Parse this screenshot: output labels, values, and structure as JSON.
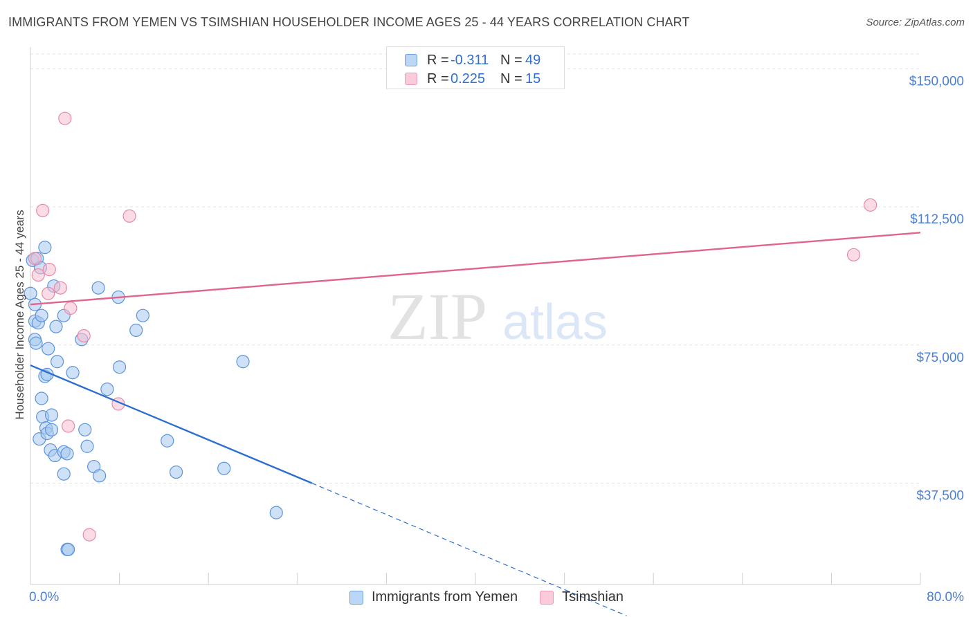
{
  "header": {
    "title": "IMMIGRANTS FROM YEMEN VS TSIMSHIAN HOUSEHOLDER INCOME AGES 25 - 44 YEARS CORRELATION CHART",
    "source": "Source: ZipAtlas.com"
  },
  "watermark": {
    "zip": "ZIP",
    "atlas": "atlas"
  },
  "legend": {
    "series": [
      {
        "r_label": "R =",
        "r_value": "-0.311",
        "n_label": "N =",
        "n_value": "49"
      },
      {
        "r_label": "R =",
        "r_value": "0.225",
        "n_label": "N =",
        "n_value": "15"
      }
    ]
  },
  "colors": {
    "blue_fill": "#a8c8f0",
    "blue_stroke": "#5b93dd",
    "blue_line": "#2a6fcf",
    "pink_fill": "#f8bdd0",
    "pink_stroke": "#e58aa8",
    "pink_line": "#e0648f",
    "axis_text": "#4a7fd4",
    "grid": "#e3e3e3"
  },
  "chart_data": {
    "type": "scatter",
    "title": "IMMIGRANTS FROM YEMEN VS TSIMSHIAN HOUSEHOLDER INCOME AGES 25 - 44 YEARS CORRELATION CHART",
    "xlabel": "",
    "ylabel": "Householder Income Ages 25 - 44 years",
    "xlim": [
      0,
      80
    ],
    "ylim": [
      10000,
      154000
    ],
    "x_tick_labels": [
      "0.0%",
      "80.0%"
    ],
    "y_ticks": [
      37500,
      75000,
      112500,
      150000
    ],
    "y_tick_labels": [
      "$37,500",
      "$75,000",
      "$112,500",
      "$150,000"
    ],
    "series": [
      {
        "name": "Immigrants from Yemen",
        "points": [
          [
            0.0,
            89000
          ],
          [
            0.2,
            98000
          ],
          [
            0.4,
            86000
          ],
          [
            0.4,
            81500
          ],
          [
            0.4,
            76500
          ],
          [
            0.5,
            75500
          ],
          [
            0.6,
            98500
          ],
          [
            0.7,
            81000
          ],
          [
            0.8,
            49500
          ],
          [
            0.9,
            96000
          ],
          [
            1.0,
            83000
          ],
          [
            1.0,
            60500
          ],
          [
            1.1,
            55500
          ],
          [
            1.3,
            101500
          ],
          [
            1.3,
            66500
          ],
          [
            1.4,
            52500
          ],
          [
            1.5,
            67000
          ],
          [
            1.5,
            51000
          ],
          [
            1.6,
            74000
          ],
          [
            1.8,
            46500
          ],
          [
            1.9,
            56000
          ],
          [
            1.9,
            52000
          ],
          [
            2.1,
            91000
          ],
          [
            2.2,
            45000
          ],
          [
            2.3,
            80000
          ],
          [
            2.4,
            70500
          ],
          [
            3.0,
            83000
          ],
          [
            3.0,
            46000
          ],
          [
            3.0,
            40000
          ],
          [
            3.3,
            45500
          ],
          [
            3.3,
            19500
          ],
          [
            3.4,
            19500
          ],
          [
            3.8,
            67500
          ],
          [
            4.6,
            76500
          ],
          [
            4.9,
            52000
          ],
          [
            5.1,
            47500
          ],
          [
            5.7,
            42000
          ],
          [
            6.1,
            90500
          ],
          [
            6.2,
            39500
          ],
          [
            6.9,
            63000
          ],
          [
            7.9,
            88000
          ],
          [
            8.0,
            69000
          ],
          [
            9.5,
            79000
          ],
          [
            10.1,
            83000
          ],
          [
            12.3,
            49000
          ],
          [
            13.1,
            40500
          ],
          [
            17.4,
            41500
          ],
          [
            19.1,
            70500
          ],
          [
            22.1,
            29500
          ]
        ],
        "trend": {
          "x": [
            0.0,
            25.3
          ],
          "y": [
            69500,
            37500
          ],
          "dashed_to": [
            53.6,
            1500
          ]
        }
      },
      {
        "name": "Tsimshian",
        "points": [
          [
            0.4,
            98500
          ],
          [
            0.7,
            94000
          ],
          [
            1.1,
            111500
          ],
          [
            1.6,
            89000
          ],
          [
            1.7,
            95500
          ],
          [
            2.7,
            90500
          ],
          [
            3.1,
            136500
          ],
          [
            3.4,
            53000
          ],
          [
            3.6,
            85000
          ],
          [
            4.8,
            77500
          ],
          [
            5.3,
            23500
          ],
          [
            7.9,
            59000
          ],
          [
            8.9,
            110000
          ],
          [
            74.0,
            99500
          ],
          [
            75.5,
            113000
          ]
        ],
        "trend": {
          "x": [
            0.0,
            80.0
          ],
          "y": [
            86000,
            105500
          ]
        }
      }
    ]
  }
}
